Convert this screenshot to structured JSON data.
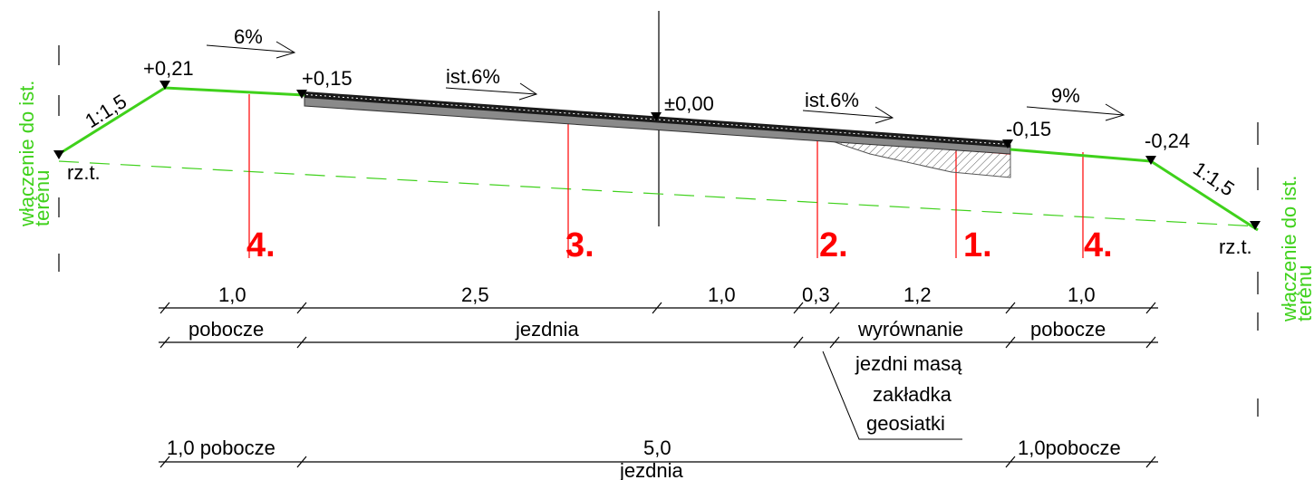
{
  "elevations": {
    "left_top": "+0,21",
    "edge_left": "+0,15",
    "axis": "±0,00",
    "edge_right": "-0,15",
    "right_top": "-0,24"
  },
  "slopes": {
    "shoulder_left": "6%",
    "lane_left": "ist.6%",
    "lane_right": "ist.6%",
    "shoulder_right": "9%",
    "embankment_left": "1:1,5",
    "embankment_right": "1:1,5"
  },
  "terrain": {
    "left_label": "rz.t.",
    "right_label": "rz.t.",
    "connection_left": [
      "włączenie do ist.",
      "terenu"
    ],
    "connection_right": [
      "włączenie do ist.",
      "terenu"
    ]
  },
  "markers": [
    "4.",
    "3.",
    "2.",
    "1.",
    "4."
  ],
  "dimension_row1": [
    "1,0",
    "2,5",
    "1,0",
    "0,3",
    "1,2",
    "1,0"
  ],
  "dimension_row2": {
    "pobocze_left": "pobocze",
    "jezdnia": "jezdnia",
    "wyrownanie": [
      "wyrównanie",
      "jezdni masą"
    ],
    "pobocze_right": "pobocze"
  },
  "geogrid_note": [
    "zakładka",
    "geosiatki"
  ],
  "dimension_row3": {
    "left": "1,0 pobocze",
    "middle_value": "5,0",
    "middle_label": "jezdnia",
    "right": "1,0pobocze"
  }
}
